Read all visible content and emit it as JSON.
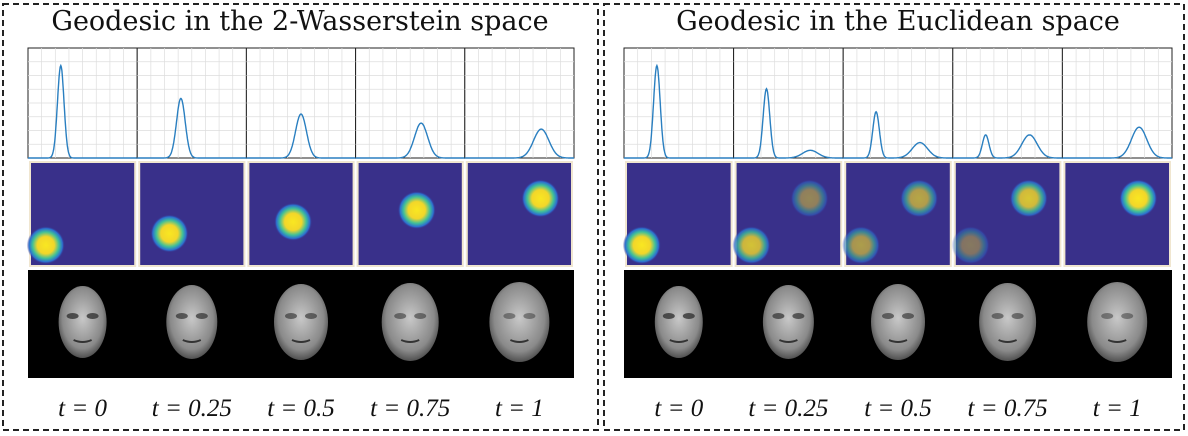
{
  "panels": [
    {
      "title": "Geodesic in the 2-Wasserstein space",
      "times": [
        "t = 0",
        "t = 0.25",
        "t = 0.5",
        "t = 0.75",
        "t = 1"
      ]
    },
    {
      "title": "Geodesic in the Euclidean space",
      "times": [
        "t = 0",
        "t = 0.25",
        "t = 0.5",
        "t = 0.75",
        "t = 1"
      ]
    }
  ]
}
